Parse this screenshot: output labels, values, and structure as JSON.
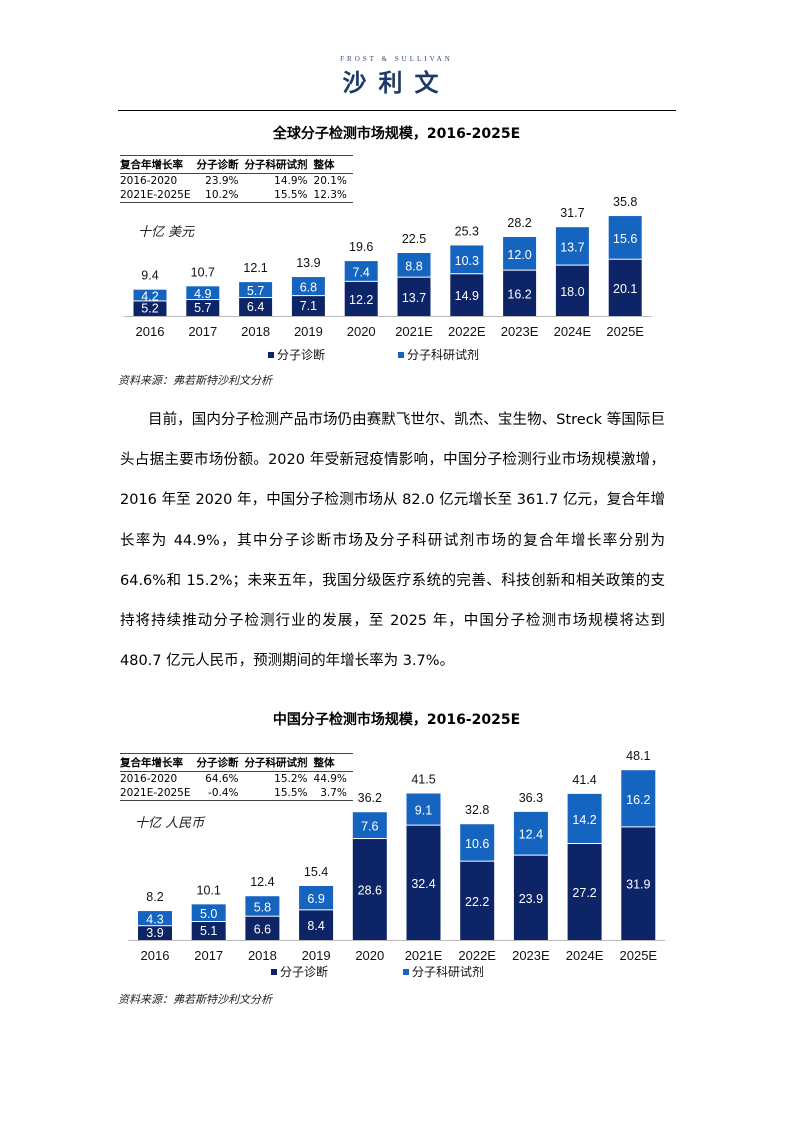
{
  "header": {
    "logo_en": "FROST & SULLIVAN",
    "logo_cn": "沙利文"
  },
  "colors": {
    "diagnosis": "#0d2467",
    "reagents": "#1565c0"
  },
  "chart1": {
    "title": "全球分子检测市场规模，2016-2025E",
    "unit": "十亿 美元",
    "cagr_table": {
      "headers": [
        "复合年增长率",
        "分子诊断",
        "分子科研试剂",
        "整体"
      ],
      "rows": [
        [
          "2016-2020",
          "23.9%",
          "14.9%",
          "20.1%"
        ],
        [
          "2021E-2025E",
          "10.2%",
          "15.5%",
          "12.3%"
        ]
      ]
    },
    "legend": [
      "分子诊断",
      "分子科研试剂"
    ],
    "source": "资料来源：弗若斯特沙利文分析"
  },
  "paragraph": "目前，国内分子检测产品市场仍由赛默飞世尔、凯杰、宝生物、Streck 等国际巨头占据主要市场份额。2020 年受新冠疫情影响，中国分子检测行业市场规模激增，2016 年至 2020 年，中国分子检测市场从 82.0 亿元增长至 361.7 亿元，复合年增长率为 44.9%，其中分子诊断市场及分子科研试剂市场的复合年增长率分别为 64.6%和 15.2%；未来五年，我国分级医疗系统的完善、科技创新和相关政策的支持将持续推动分子检测行业的发展，至 2025 年，中国分子检测市场规模将达到 480.7 亿元人民币，预测期间的年增长率为 3.7%。",
  "chart2": {
    "title": "中国分子检测市场规模，2016-2025E",
    "unit": "十亿 人民币",
    "cagr_table": {
      "headers": [
        "复合年增长率",
        "分子诊断",
        "分子科研试剂",
        "整体"
      ],
      "rows": [
        [
          "2016-2020",
          "64.6%",
          "15.2%",
          "44.9%"
        ],
        [
          "2021E-2025E",
          "-0.4%",
          "15.5%",
          "3.7%"
        ]
      ]
    },
    "legend": [
      "分子诊断",
      "分子科研试剂"
    ],
    "source": "资料来源：弗若斯特沙利文分析"
  },
  "chart_data": [
    {
      "type": "bar",
      "stacked": true,
      "title": "全球分子检测市场规模，2016-2025E",
      "ylabel": "十亿 美元",
      "categories": [
        "2016",
        "2017",
        "2018",
        "2019",
        "2020",
        "2021E",
        "2022E",
        "2023E",
        "2024E",
        "2025E"
      ],
      "series": [
        {
          "name": "分子诊断",
          "values": [
            5.2,
            5.7,
            6.4,
            7.1,
            12.2,
            13.7,
            14.9,
            16.2,
            18.0,
            20.1
          ]
        },
        {
          "name": "分子科研试剂",
          "values": [
            4.2,
            4.9,
            5.7,
            6.8,
            7.4,
            8.8,
            10.3,
            12.0,
            13.7,
            15.6
          ]
        }
      ],
      "totals": [
        "9.4",
        "10.7",
        "12.1",
        "13.9",
        "19.6",
        "22.5",
        "25.3",
        "28.2",
        "31.7",
        "35.8"
      ],
      "legend_position": "bottom",
      "grid": false
    },
    {
      "type": "bar",
      "stacked": true,
      "title": "中国分子检测市场规模，2016-2025E",
      "ylabel": "十亿 人民币",
      "categories": [
        "2016",
        "2017",
        "2018",
        "2019",
        "2020",
        "2021E",
        "2022E",
        "2023E",
        "2024E",
        "2025E"
      ],
      "series": [
        {
          "name": "分子诊断",
          "values": [
            3.9,
            5.1,
            6.6,
            8.4,
            28.6,
            32.4,
            22.2,
            23.9,
            27.2,
            31.9
          ]
        },
        {
          "name": "分子科研试剂",
          "values": [
            4.3,
            5.0,
            5.8,
            6.9,
            7.6,
            9.1,
            10.6,
            12.4,
            14.2,
            16.2
          ]
        }
      ],
      "totals": [
        "8.2",
        "10.1",
        "12.4",
        "15.4",
        "36.2",
        "41.5",
        "32.8",
        "36.3",
        "41.4",
        "48.1"
      ],
      "legend_position": "bottom",
      "grid": false
    }
  ]
}
